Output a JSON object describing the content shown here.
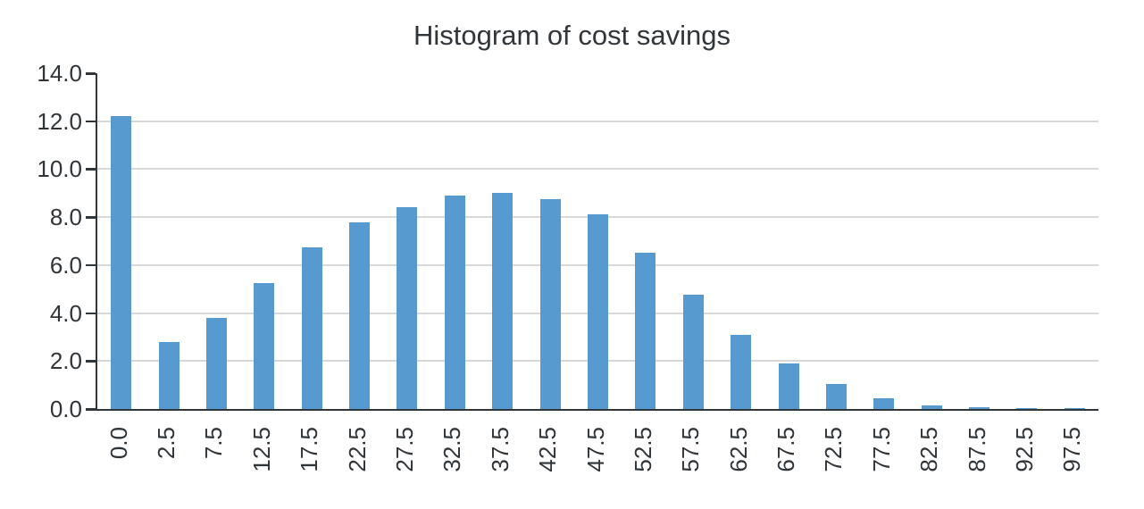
{
  "chart_data": {
    "type": "bar",
    "title": "Histogram of cost savings",
    "xlabel": "",
    "ylabel": "",
    "categories": [
      "0.0",
      "2.5",
      "7.5",
      "12.5",
      "17.5",
      "22.5",
      "27.5",
      "32.5",
      "37.5",
      "42.5",
      "47.5",
      "52.5",
      "57.5",
      "62.5",
      "67.5",
      "72.5",
      "77.5",
      "82.5",
      "87.5",
      "92.5",
      "97.5"
    ],
    "values": [
      12.2,
      2.8,
      3.8,
      5.25,
      6.75,
      7.8,
      8.4,
      8.9,
      9.0,
      8.75,
      8.1,
      6.5,
      4.75,
      3.1,
      1.9,
      1.05,
      0.45,
      0.15,
      0.07,
      0.03,
      0.03
    ],
    "ylim": [
      0,
      14
    ],
    "yticks": [
      "0.0",
      "2.0",
      "4.0",
      "6.0",
      "8.0",
      "10.0",
      "12.0",
      "14.0"
    ],
    "gridline_values": [
      2,
      4,
      6,
      8,
      10,
      12
    ],
    "grid": "horizontal",
    "legend": "none",
    "x_label_rotation_deg": 90,
    "bar_color": "#569AD0",
    "axis_color": "#31363b",
    "grid_color": "#d8d8d8",
    "text_color": "#30353a"
  }
}
